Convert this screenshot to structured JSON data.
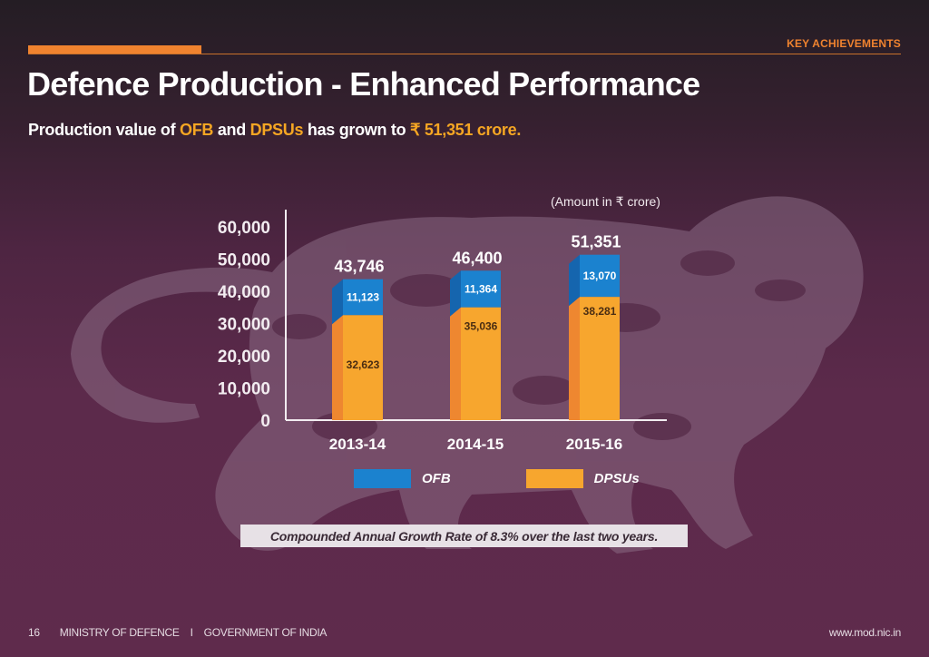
{
  "header": {
    "section_label": "KEY ACHIEVEMENTS",
    "title": "Defence Production - Enhanced Performance",
    "subtitle": {
      "part1": "Production value of ",
      "ofb": "OFB",
      "part2": " and ",
      "dpsus": "DPSUs",
      "part3": " has grown to ",
      "amount": "₹ 51,351 crore."
    }
  },
  "colors": {
    "accent_orange": "#f0832f",
    "ofb_blue": "#1b82cf",
    "ofb_blue_side": "#1565ae",
    "dpsu_orange": "#f7a62e",
    "dpsu_orange_side": "#ee8730",
    "highlight": "#f5a623"
  },
  "chart_data": {
    "type": "bar",
    "stacked": true,
    "title": "",
    "unit_note": "(Amount in ₹ crore)",
    "xlabel": "",
    "ylabel": "",
    "categories": [
      "2013-14",
      "2014-15",
      "2015-16"
    ],
    "series": [
      {
        "name": "DPSUs",
        "values": [
          32623,
          35036,
          38281
        ],
        "labels": [
          "32,623",
          "35,036",
          "38,281"
        ]
      },
      {
        "name": "OFB",
        "values": [
          11123,
          11364,
          13070
        ],
        "labels": [
          "11,123",
          "11,364",
          "13,070"
        ]
      }
    ],
    "totals": [
      43746,
      46400,
      51351
    ],
    "total_labels": [
      "43,746",
      "46,400",
      "51,351"
    ],
    "ylim": [
      0,
      60000
    ],
    "yticks": [
      0,
      10000,
      20000,
      30000,
      40000,
      50000,
      60000
    ],
    "ytick_labels": [
      "0",
      "10,000",
      "20,000",
      "30,000",
      "40,000",
      "50,000",
      "60,000"
    ],
    "grid": false,
    "legend": {
      "placement": "bottom",
      "entries": [
        "OFB",
        "DPSUs"
      ]
    }
  },
  "legend": {
    "ofb": "OFB",
    "dpsus": "DPSUs"
  },
  "cagr_note": "Compounded Annual Growth Rate of 8.3% over the last two years.",
  "footer": {
    "page_number": "16",
    "ministry": "MINISTRY OF DEFENCE",
    "separator": "I",
    "government": "GOVERNMENT OF INDIA",
    "website": "www.mod.nic.in"
  }
}
